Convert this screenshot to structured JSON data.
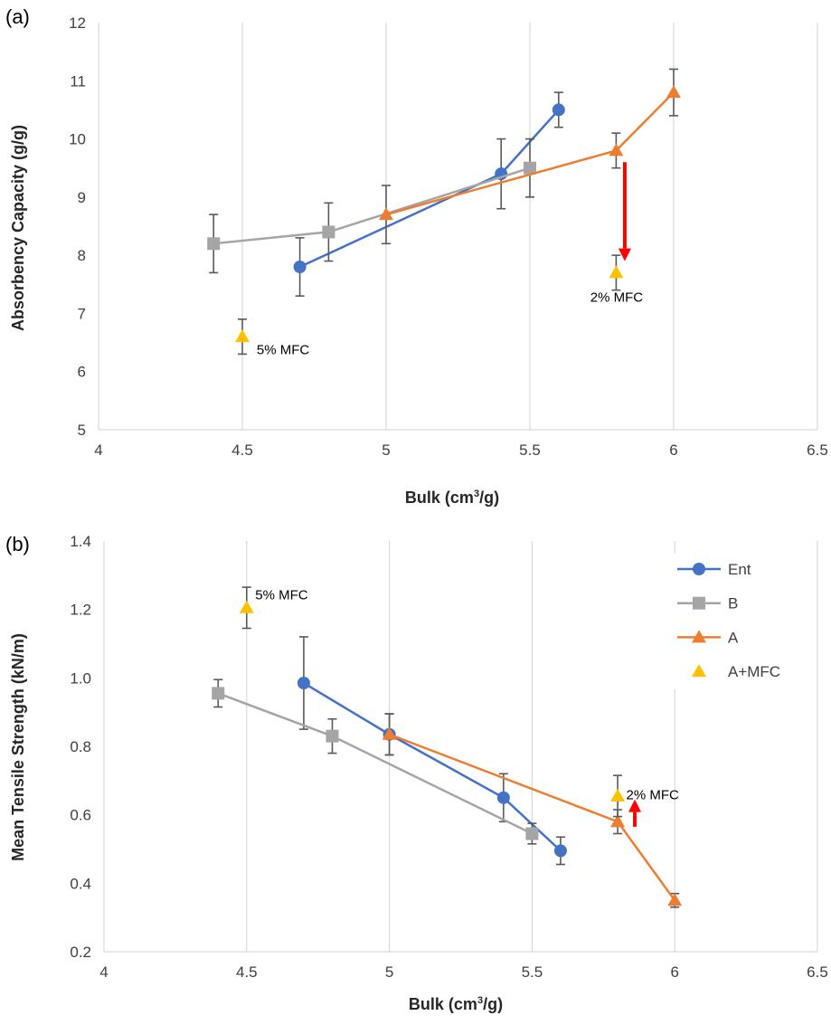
{
  "chart_data": [
    {
      "panel": "(a)",
      "type": "line",
      "xlabel_main": "Bulk (cm",
      "xlabel_sup": "3",
      "xlabel_tail": "/g)",
      "ylabel": "Absorbency Capacity (g/g)",
      "xlim": [
        4,
        6.5
      ],
      "ylim": [
        5,
        12
      ],
      "x_ticks": [
        "4",
        "4.5",
        "5",
        "5.5",
        "6",
        "6.5"
      ],
      "y_ticks": [
        "5",
        "6",
        "7",
        "8",
        "9",
        "10",
        "11",
        "12"
      ],
      "grid": "vertical",
      "series": [
        {
          "name": "Ent",
          "color": "#4472C4",
          "marker": "circle",
          "line": true,
          "x": [
            4.7,
            5.4,
            5.6
          ],
          "y": [
            7.8,
            9.4,
            10.5
          ],
          "err": [
            0.5,
            0.6,
            0.3
          ]
        },
        {
          "name": "B",
          "color": "#A5A5A5",
          "marker": "square",
          "line": true,
          "x": [
            4.4,
            4.8,
            5.5
          ],
          "y": [
            8.2,
            8.4,
            9.5
          ],
          "err": [
            0.5,
            0.5,
            0.5
          ]
        },
        {
          "name": "A",
          "color": "#ED7D31",
          "marker": "triangle",
          "line": true,
          "x": [
            5.0,
            5.8,
            6.0
          ],
          "y": [
            8.7,
            9.8,
            10.8
          ],
          "err": [
            0.5,
            0.3,
            0.4
          ]
        },
        {
          "name": "A+MFC",
          "color": "#FFC000",
          "marker": "triangle",
          "line": false,
          "x": [
            4.5,
            5.8
          ],
          "y": [
            6.6,
            7.7
          ],
          "err": [
            0.3,
            0.3
          ]
        }
      ],
      "annotations": [
        {
          "text": "5% MFC",
          "x": 4.55,
          "y": 6.3
        },
        {
          "text": "2% MFC",
          "x": 5.71,
          "y": 7.2
        }
      ],
      "arrow": {
        "color": "#FF0000",
        "x": 5.83,
        "from": 9.6,
        "to": 7.9
      }
    },
    {
      "panel": "(b)",
      "type": "line",
      "xlabel_main": "Bulk (cm",
      "xlabel_sup": "3",
      "xlabel_tail": "/g)",
      "ylabel": "Mean Tensile Strength (kN/m)",
      "xlim": [
        4,
        6.5
      ],
      "ylim": [
        0.2,
        1.4
      ],
      "x_ticks": [
        "4",
        "4.5",
        "5",
        "5.5",
        "6",
        "6.5"
      ],
      "y_ticks": [
        "0.2",
        "0.4",
        "0.6",
        "0.8",
        "1.0",
        "1.2",
        "1.4"
      ],
      "grid": "vertical",
      "legend": "top-right",
      "series": [
        {
          "name": "Ent",
          "color": "#4472C4",
          "marker": "circle",
          "line": true,
          "x": [
            4.7,
            5.0,
            5.4,
            5.6
          ],
          "y": [
            0.985,
            0.835,
            0.65,
            0.495
          ],
          "err": [
            0.135,
            0.06,
            0.07,
            0.04
          ]
        },
        {
          "name": "B",
          "color": "#A5A5A5",
          "marker": "square",
          "line": true,
          "x": [
            4.4,
            4.8,
            5.5
          ],
          "y": [
            0.955,
            0.83,
            0.545
          ],
          "err": [
            0.04,
            0.05,
            0.03
          ]
        },
        {
          "name": "A",
          "color": "#ED7D31",
          "marker": "triangle",
          "line": true,
          "x": [
            5.0,
            5.8,
            6.0
          ],
          "y": [
            0.835,
            0.58,
            0.35
          ],
          "err": [
            0.06,
            0.035,
            0.02
          ]
        },
        {
          "name": "A+MFC",
          "color": "#FFC000",
          "marker": "triangle",
          "line": false,
          "x": [
            4.5,
            5.8
          ],
          "y": [
            1.205,
            0.655
          ],
          "err": [
            0.06,
            0.06
          ]
        }
      ],
      "annotations": [
        {
          "text": "5% MFC",
          "x": 4.53,
          "y": 1.23
        },
        {
          "text": "2% MFC",
          "x": 5.83,
          "y": 0.645
        }
      ],
      "arrow": {
        "color": "#FF0000",
        "x": 5.86,
        "from": 0.565,
        "to": 0.645
      }
    }
  ]
}
